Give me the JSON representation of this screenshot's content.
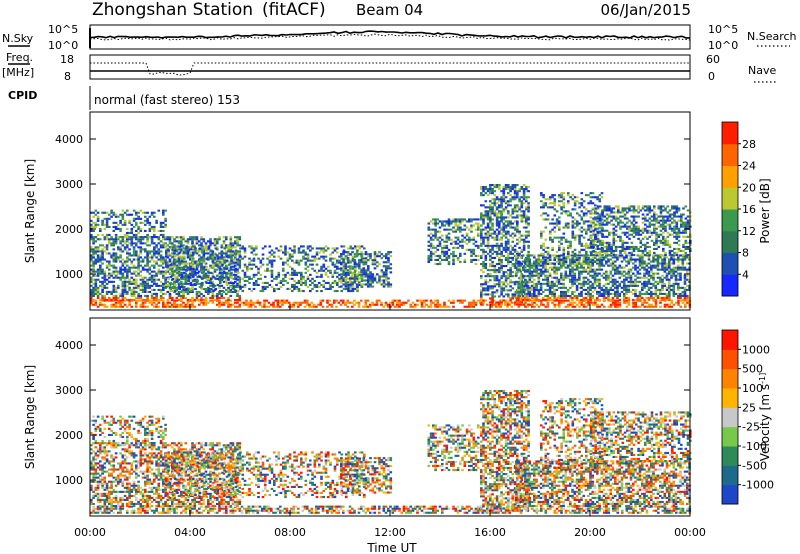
{
  "header": {
    "station": "Zhongshan Station",
    "mode": "(fitACF)",
    "beam": "Beam 04",
    "date": "06/Jan/2015"
  },
  "top_panel": {
    "left_label": "N.Sky",
    "right_label": "N.Search",
    "left_ticks": [
      "10^5",
      "10^0"
    ],
    "right_ticks": [
      "10^5",
      "10^0"
    ]
  },
  "freq_panel": {
    "left_label_line1": "Freq.",
    "left_label_line2": "[MHz]",
    "right_label": "Nave",
    "left_ticks": [
      "18",
      "8"
    ],
    "right_ticks": [
      "60",
      "0"
    ]
  },
  "cpid_panel": {
    "label": "CPID",
    "text": "normal (fast stereo) 153"
  },
  "colors": {
    "power_scale": [
      "#1428ff",
      "#1e50b4",
      "#2f7a55",
      "#3c9a4e",
      "#bcc830",
      "#ffa000",
      "#ff6400",
      "#ff1e00"
    ],
    "velocity_scale": [
      "#1e46c8",
      "#1e6a8c",
      "#2f8a5a",
      "#78c84b",
      "#c8c8c8",
      "#ffb400",
      "#ff8200",
      "#ff5000",
      "#ff1400"
    ]
  },
  "chart_data": [
    {
      "type": "heatmap",
      "name": "power",
      "ylabel": "Slant Range [km]",
      "yticks": [
        "1000",
        "2000",
        "3000",
        "4000"
      ],
      "ylim": [
        200,
        4600
      ],
      "xlim": [
        0,
        24
      ],
      "colorbar_label": "Power [dB]",
      "colorbar_ticks": [
        "28",
        "24",
        "20",
        "16",
        "12",
        "8",
        "4"
      ],
      "colorbar_range": [
        0,
        32
      ]
    },
    {
      "type": "heatmap",
      "name": "velocity",
      "ylabel": "Slant Range [km]",
      "yticks": [
        "1000",
        "2000",
        "3000",
        "4000"
      ],
      "ylim": [
        200,
        4600
      ],
      "xlim": [
        0,
        24
      ],
      "xticks": [
        "00:00",
        "04:00",
        "08:00",
        "12:00",
        "16:00",
        "20:00",
        "00:00"
      ],
      "xlabel": "Time UT",
      "colorbar_label": "Velocity [m s^-1]",
      "colorbar_ticks": [
        "1000",
        "500",
        "100",
        "25",
        "-25",
        "-100",
        "-500",
        "-1000"
      ]
    }
  ]
}
